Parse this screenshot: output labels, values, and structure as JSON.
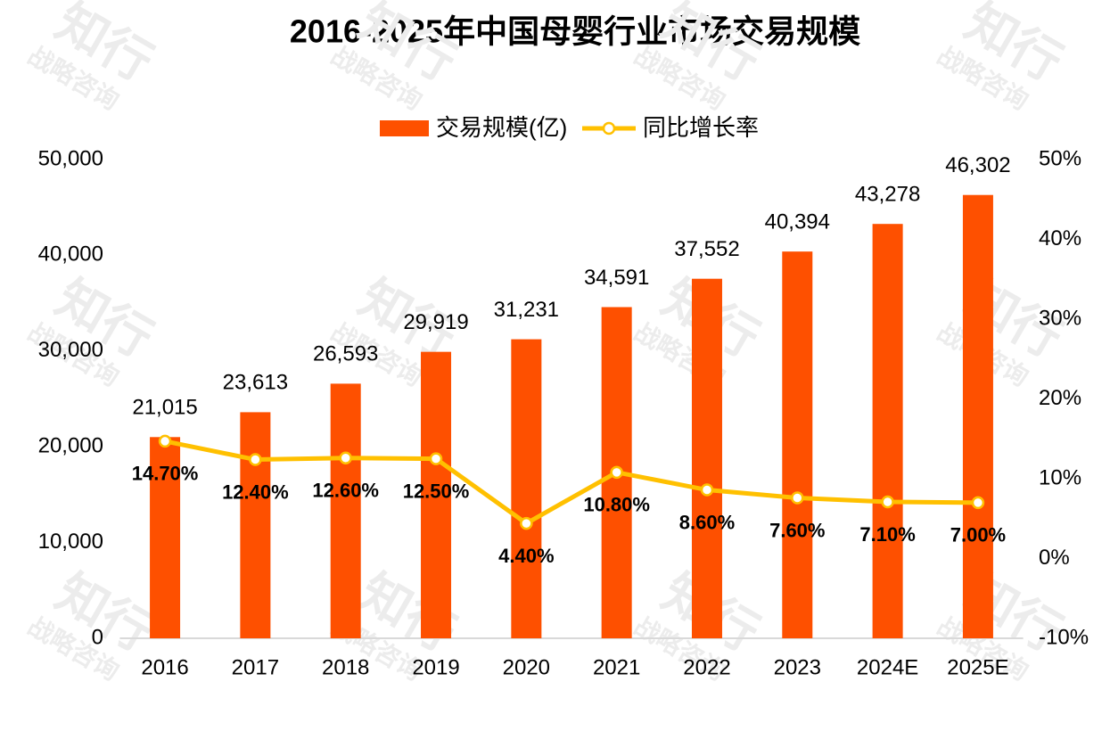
{
  "chart_data": {
    "type": "bar",
    "title": "2016-2025年中国母婴行业市场交易规模",
    "watermark": {
      "brand": "知行",
      "tagline": "战略咨询"
    },
    "categories": [
      "2016",
      "2017",
      "2018",
      "2019",
      "2020",
      "2021",
      "2022",
      "2023",
      "2024E",
      "2025E"
    ],
    "series": [
      {
        "name": "交易规模(亿)",
        "type": "bar",
        "color": "#fe5000",
        "values": [
          21015,
          23613,
          26593,
          29919,
          31231,
          34591,
          37552,
          40394,
          43278,
          46302
        ],
        "value_labels": [
          "21,015",
          "23,613",
          "26,593",
          "29,919",
          "31,231",
          "34,591",
          "37,552",
          "40,394",
          "43,278",
          "46,302"
        ]
      },
      {
        "name": "同比增长率",
        "type": "line",
        "axis": "y2",
        "color": "#ffc000",
        "values": [
          14.7,
          12.4,
          12.6,
          12.5,
          4.4,
          10.8,
          8.6,
          7.6,
          7.1,
          7.0
        ],
        "value_labels": [
          "14.70%",
          "12.40%",
          "12.60%",
          "12.50%",
          "4.40%",
          "10.80%",
          "8.60%",
          "7.60%",
          "7.10%",
          "7.00%"
        ]
      }
    ],
    "ylim": [
      0,
      50000
    ],
    "yticks": [
      0,
      {
        "value": 10000,
        "label": "10,000"
      },
      {
        "value": 20000,
        "label": "20,000"
      },
      {
        "value": 30000,
        "label": "30,000"
      },
      {
        "value": 40000,
        "label": "40,000"
      },
      {
        "value": 50000,
        "label": "50,000"
      }
    ],
    "y2lim": [
      -10,
      50
    ],
    "y2ticks": [
      {
        "value": -10,
        "label": "-10%"
      },
      {
        "value": 0,
        "label": "0%"
      },
      {
        "value": 10,
        "label": "10%"
      },
      {
        "value": 20,
        "label": "20%"
      },
      {
        "value": 30,
        "label": "30%"
      },
      {
        "value": 40,
        "label": "40%"
      },
      {
        "value": 50,
        "label": "50%"
      }
    ],
    "legend": "top",
    "grid": false
  }
}
